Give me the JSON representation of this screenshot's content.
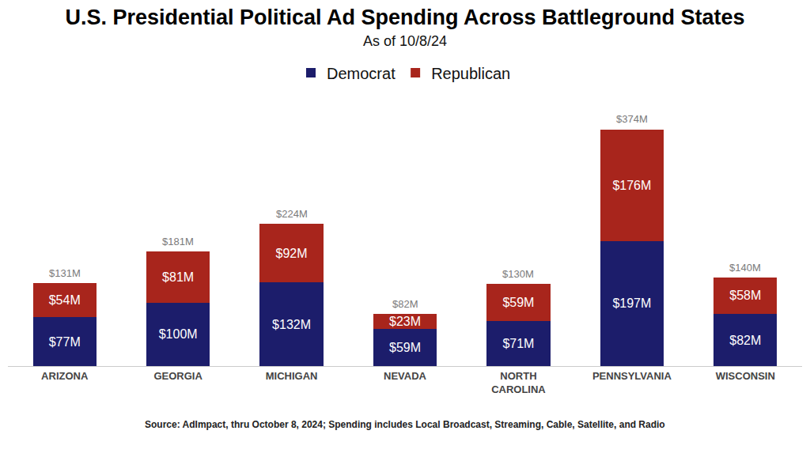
{
  "chart_data": {
    "type": "bar",
    "title": "U.S. Presidential Political Ad Spending Across Battleground States",
    "subtitle": "As of 10/8/24",
    "categories": [
      "ARIZONA",
      "GEORGIA",
      "MICHIGAN",
      "NEVADA",
      "NORTH CAROLINA",
      "PENNSYLVANIA",
      "WISCONSIN"
    ],
    "series": [
      {
        "name": "Democrat",
        "color": "#1c1d6b",
        "values": [
          77,
          100,
          132,
          59,
          71,
          197,
          82
        ],
        "value_labels": [
          "$77M",
          "$100M",
          "$132M",
          "$59M",
          "$71M",
          "$197M",
          "$82M"
        ]
      },
      {
        "name": "Republican",
        "color": "#a8251c",
        "values": [
          54,
          81,
          92,
          23,
          59,
          176,
          58
        ],
        "value_labels": [
          "$54M",
          "$81M",
          "$92M",
          "$23M",
          "$59M",
          "$176M",
          "$58M"
        ]
      }
    ],
    "totals": [
      131,
      181,
      224,
      82,
      130,
      374,
      140
    ],
    "total_labels": [
      "$131M",
      "$181M",
      "$224M",
      "$82M",
      "$130M",
      "$374M",
      "$140M"
    ],
    "stacked": true,
    "data_labels": true,
    "legend": "top",
    "tick_labels": "x",
    "grid": false,
    "source": "Source: AdImpact, thru October 8, 2024; Spending includes Local Broadcast, Streaming, Cable, Satellite, and Radio"
  }
}
